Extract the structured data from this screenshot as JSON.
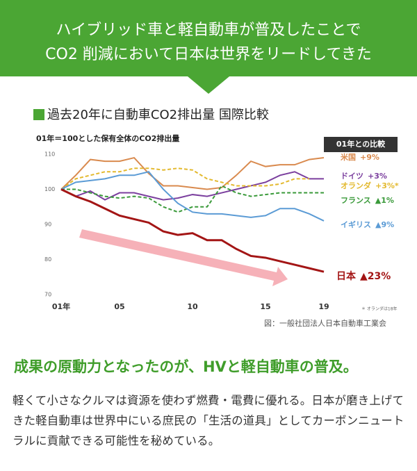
{
  "header": {
    "lines": [
      "ハイブリッド車と軽自動車が普及したことで",
      "CO2 削減において日本は世界をリードしてきた"
    ]
  },
  "chart_data": {
    "type": "line",
    "title": "過去20年に自動車CO2排出量 国際比較",
    "subtitle": "01年＝100とした保有全体のCO2排出量",
    "legend_title": "01年との比較",
    "note": "＊ オランダは18年",
    "source": "図：一般社団法人日本自動車工業会",
    "x": [
      1,
      2,
      3,
      4,
      5,
      6,
      7,
      8,
      9,
      10,
      11,
      12,
      13,
      14,
      15,
      16,
      17,
      18,
      19
    ],
    "xlim": [
      1,
      19
    ],
    "xticks": [
      {
        "value": 1,
        "label": "01年"
      },
      {
        "value": 5,
        "label": "05"
      },
      10,
      15,
      19
    ],
    "ylim": [
      70,
      110
    ],
    "yticks": [
      70,
      80,
      90,
      100,
      110
    ],
    "series": [
      {
        "name": "米国",
        "change": "+9%",
        "color": "#d98a4e",
        "dash": false,
        "values": [
          100,
          104,
          108.5,
          108,
          108,
          109,
          104.5,
          101,
          101,
          100.5,
          100,
          100.5,
          104,
          108,
          106.5,
          107,
          107,
          108.5,
          109
        ]
      },
      {
        "name": "ドイツ",
        "change": "+3%",
        "color": "#7b3f9e",
        "dash": false,
        "values": [
          100,
          98,
          99.5,
          97,
          99,
          99,
          98,
          97,
          97.5,
          98.5,
          98,
          99,
          100,
          101,
          102,
          104,
          105,
          103,
          103
        ]
      },
      {
        "name": "オランダ",
        "change": "+3%*",
        "color": "#e3b92e",
        "dash": true,
        "values": [
          100,
          103,
          104,
          105,
          105,
          106,
          106,
          105.5,
          106,
          105.5,
          103,
          102,
          101,
          101,
          101,
          101.5,
          103,
          103,
          null
        ]
      },
      {
        "name": "フランス",
        "change": "▲1%",
        "color": "#3a9a3a",
        "dash": true,
        "values": [
          100,
          100,
          99,
          98,
          97.5,
          98,
          97.5,
          95,
          93.5,
          95,
          95,
          101,
          99,
          98,
          98.5,
          99,
          99,
          99,
          99
        ]
      },
      {
        "name": "イギリス",
        "change": "▲9%",
        "color": "#5b9bd5",
        "dash": false,
        "values": [
          100,
          102,
          102.5,
          103,
          104,
          104,
          105,
          100,
          96,
          93.5,
          93,
          93,
          92.5,
          92,
          92.5,
          94.5,
          94.5,
          93,
          91
        ]
      },
      {
        "name": "日本",
        "change": "▲23%",
        "color": "#a31515",
        "dash": false,
        "values": [
          100,
          98,
          96.5,
          94.5,
          92.5,
          91.5,
          90.5,
          88,
          87,
          87.5,
          85.5,
          85.5,
          83,
          81,
          80.5,
          79.5,
          78.5,
          77.5,
          76.5
        ]
      }
    ]
  },
  "body": {
    "heading": "成果の原動力となったのが、HVと軽自動車の普及。",
    "text": "軽くて小さなクルマは資源を使わず燃費・電費に優れる。日本が磨き上げてきた軽自動車は世界中にいる庶民の「生活の道具」としてカーボンニュートラルに貢献できる可能性を秘めている。"
  }
}
